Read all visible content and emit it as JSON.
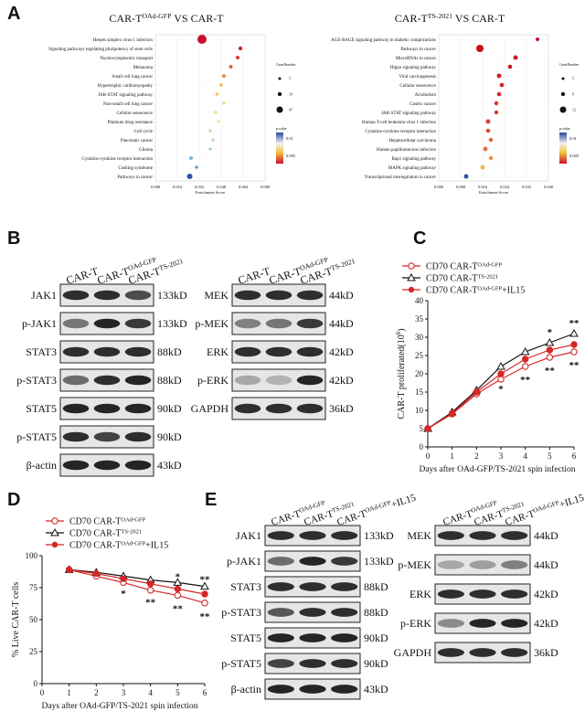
{
  "panels": {
    "A": "A",
    "B": "B",
    "C": "C",
    "D": "D",
    "E": "E"
  },
  "panel_a": {
    "left": {
      "title_main": "CAR-T",
      "title_sup": "OAd-GFP",
      "title_rest": " VS CAR-T",
      "xlabel": "Enrichment Score",
      "xticks": [
        "0.000",
        "0.016",
        "0.032",
        "0.048",
        "0.064",
        "0.080"
      ],
      "terms": [
        {
          "name": "Herpes simplex virus 1 infection",
          "x": 0.034,
          "color": "#c8102e",
          "size": 5
        },
        {
          "name": "Signaling pathways regulating pluripotency of stem cells",
          "x": 0.062,
          "color": "#d02a2a",
          "size": 2.2
        },
        {
          "name": "Nucleocytoplasmic transport",
          "x": 0.06,
          "color": "#d63a2a",
          "size": 2
        },
        {
          "name": "Melanoma",
          "x": 0.055,
          "color": "#e06030",
          "size": 2
        },
        {
          "name": "Small cell lung cancer",
          "x": 0.05,
          "color": "#e88a3c",
          "size": 2
        },
        {
          "name": "Hypertrophic cardiomyopathy",
          "x": 0.048,
          "color": "#eeb050",
          "size": 1.8
        },
        {
          "name": "JAK-STAT signaling pathway",
          "x": 0.045,
          "color": "#f2c860",
          "size": 1.8
        },
        {
          "name": "Non-small cell lung cancer",
          "x": 0.05,
          "color": "#f4d870",
          "size": 1.6
        },
        {
          "name": "Cellular senescence",
          "x": 0.044,
          "color": "#f0e080",
          "size": 1.8
        },
        {
          "name": "Platinum drug resistance",
          "x": 0.046,
          "color": "#e4e6a0",
          "size": 1.6
        },
        {
          "name": "Cell cycle",
          "x": 0.04,
          "color": "#c8e0b0",
          "size": 1.8
        },
        {
          "name": "Pancreatic cancer",
          "x": 0.042,
          "color": "#b0d8c0",
          "size": 1.6
        },
        {
          "name": "Glioma",
          "x": 0.04,
          "color": "#a0d0cc",
          "size": 1.6
        },
        {
          "name": "Cytokine-cytokine receptor interaction",
          "x": 0.026,
          "color": "#7ab0d8",
          "size": 2
        },
        {
          "name": "Cushing syndrome",
          "x": 0.03,
          "color": "#6aa0d0",
          "size": 1.8
        },
        {
          "name": "Pathways in cancer",
          "x": 0.025,
          "color": "#3050a0",
          "size": 3
        }
      ],
      "legend_title": "GeneNumber",
      "legend_sizes": [
        "5",
        "10",
        "47"
      ],
      "legend_p_title": "p.value",
      "legend_p_ticks": [
        "0.01",
        "0.005"
      ]
    },
    "right": {
      "title_main": "CAR-T",
      "title_sup": "TS-2021",
      "title_rest": " VS CAR-T",
      "xlabel": "Enrichment Score",
      "xticks": [
        "0.000",
        "0.008",
        "0.016",
        "0.024",
        "0.032",
        "0.040"
      ],
      "terms": [
        {
          "name": "AGE-RAGE signaling pathway in diabetic complications",
          "x": 0.036,
          "color": "#c8102e",
          "size": 2
        },
        {
          "name": "Pathways in cancer",
          "x": 0.015,
          "color": "#c81020",
          "size": 4
        },
        {
          "name": "MicroRNAs in cancer",
          "x": 0.028,
          "color": "#c81a28",
          "size": 2.5
        },
        {
          "name": "Hippo signaling pathway",
          "x": 0.026,
          "color": "#cc1a28",
          "size": 2.3
        },
        {
          "name": "Viral carcinogenesis",
          "x": 0.022,
          "color": "#d02028",
          "size": 2.5
        },
        {
          "name": "Cellular senescence",
          "x": 0.023,
          "color": "#d02028",
          "size": 2.3
        },
        {
          "name": "Alcoholism",
          "x": 0.022,
          "color": "#d42830",
          "size": 2.3
        },
        {
          "name": "Gastric cancer",
          "x": 0.021,
          "color": "#d83030",
          "size": 2.2
        },
        {
          "name": "JAK-STAT signaling pathway",
          "x": 0.021,
          "color": "#d83a30",
          "size": 2.2
        },
        {
          "name": "Human T-cell leukemia virus 1 infection",
          "x": 0.018,
          "color": "#dc4030",
          "size": 2.5
        },
        {
          "name": "Cytokine-cytokine receptor interaction",
          "x": 0.018,
          "color": "#e05030",
          "size": 2.3
        },
        {
          "name": "Hepatocellular carcinoma",
          "x": 0.019,
          "color": "#e46034",
          "size": 2.2
        },
        {
          "name": "Human papillomavirus infection",
          "x": 0.017,
          "color": "#e87038",
          "size": 2.5
        },
        {
          "name": "Rap1 signaling pathway",
          "x": 0.019,
          "color": "#ee8a40",
          "size": 2.2
        },
        {
          "name": "MAPK signaling pathway",
          "x": 0.016,
          "color": "#f2b050",
          "size": 2.4
        },
        {
          "name": "Transcriptional misregulation in cancer",
          "x": 0.01,
          "color": "#3050a0",
          "size": 2.5
        }
      ],
      "legend_title": "GeneNumber",
      "legend_sizes": [
        "5",
        "9",
        "12"
      ],
      "legend_p_title": "p.value",
      "legend_p_ticks": [
        "0.01",
        "0.005"
      ]
    }
  },
  "panel_b": {
    "lanes": [
      {
        "main": "CAR-T",
        "sup": ""
      },
      {
        "main": "CAR-T",
        "sup": "OAd-GFP"
      },
      {
        "main": "CAR-T",
        "sup": "TS-2021"
      }
    ],
    "left_rows": [
      {
        "label": "JAK1",
        "kd": "133kD"
      },
      {
        "label": "p-JAK1",
        "kd": "133kD"
      },
      {
        "label": "STAT3",
        "kd": "88kD"
      },
      {
        "label": "p-STAT3",
        "kd": "88kD"
      },
      {
        "label": "STAT5",
        "kd": "90kD"
      },
      {
        "label": "p-STAT5",
        "kd": "90kD"
      },
      {
        "label": "β-actin",
        "kd": "43kD"
      }
    ],
    "right_rows": [
      {
        "label": "MEK",
        "kd": "44kD"
      },
      {
        "label": "p-MEK",
        "kd": "44kD"
      },
      {
        "label": "ERK",
        "kd": "42kD"
      },
      {
        "label": "p-ERK",
        "kd": "42kD"
      },
      {
        "label": "GAPDH",
        "kd": "36kD"
      }
    ]
  },
  "panel_e": {
    "lanes": [
      {
        "main": "CAR-T",
        "sup": "OAd-GFP",
        "rest": ""
      },
      {
        "main": "CAR-T",
        "sup": "TS-2021",
        "rest": ""
      },
      {
        "main": "CAR-T",
        "sup": "OAd-GFP",
        "rest": "+IL15"
      }
    ],
    "left_rows": [
      {
        "label": "JAK1",
        "kd": "133kD"
      },
      {
        "label": "p-JAK1",
        "kd": "133kD"
      },
      {
        "label": "STAT3",
        "kd": "88kD"
      },
      {
        "label": "p-STAT3",
        "kd": "88kD"
      },
      {
        "label": "STAT5",
        "kd": "90kD"
      },
      {
        "label": "p-STAT5",
        "kd": "90kD"
      },
      {
        "label": "β-actin",
        "kd": "43kD"
      }
    ],
    "right_rows": [
      {
        "label": "MEK",
        "kd": "44kD"
      },
      {
        "label": "p-MEK",
        "kd": "44kD"
      },
      {
        "label": "ERK",
        "kd": "42kD"
      },
      {
        "label": "p-ERK",
        "kd": "42kD"
      },
      {
        "label": "GAPDH",
        "kd": "36kD"
      }
    ]
  },
  "chart_data": [
    {
      "type": "line",
      "panel": "C",
      "xlabel": "Days after OAd-GFP/TS-2021 spin infection",
      "ylabel": "CAR-T proliferated(10",
      "ylabel_sup": "6",
      "ylabel_end": ")",
      "xlim": [
        0,
        6
      ],
      "ylim": [
        0,
        40
      ],
      "xticks": [
        "0",
        "1",
        "2",
        "3",
        "4",
        "5",
        "6"
      ],
      "yticks": [
        "0",
        "5",
        "10",
        "15",
        "20",
        "25",
        "30",
        "35",
        "40"
      ],
      "x": [
        0,
        1,
        2,
        3,
        4,
        5,
        6
      ],
      "series": [
        {
          "name_main": "CD70 CAR-T",
          "name_sup": "OAd-GFP",
          "name_rest": "",
          "values": [
            5,
            9,
            14.5,
            18.5,
            22,
            24.5,
            26
          ],
          "color": "#d62728",
          "marker": "open-circle"
        },
        {
          "name_main": "CD70 CAR-T",
          "name_sup": "TS-2021",
          "name_rest": "",
          "values": [
            5,
            9.5,
            15.5,
            22,
            26,
            28.5,
            31
          ],
          "color": "#111111",
          "marker": "open-triangle"
        },
        {
          "name_main": "CD70 CAR-T",
          "name_sup": "OAd-GFP",
          "name_rest": "+IL15",
          "values": [
            5,
            9.2,
            15,
            20,
            24,
            26.5,
            28
          ],
          "color": "#d62728",
          "marker": "filled-circle"
        }
      ],
      "annotations": [
        {
          "x": 3,
          "y": 15,
          "text": "*",
          "color": "#111"
        },
        {
          "x": 4,
          "y": 17.5,
          "text": "**",
          "color": "#111"
        },
        {
          "x": 5,
          "y": 30.5,
          "text": "*",
          "color": "#111"
        },
        {
          "x": 5,
          "y": 20,
          "text": "**",
          "color": "#111"
        },
        {
          "x": 6,
          "y": 33,
          "text": "**",
          "color": "#111"
        },
        {
          "x": 6,
          "y": 21.5,
          "text": "**",
          "color": "#111"
        }
      ]
    },
    {
      "type": "line",
      "panel": "D",
      "xlabel": "Days after OAd-GFP/TS-2021 spin infection",
      "ylabel": "% Live CAR-T cells",
      "xlim": [
        0,
        6
      ],
      "ylim": [
        0,
        100
      ],
      "xticks": [
        "0",
        "1",
        "2",
        "3",
        "4",
        "5",
        "6"
      ],
      "yticks": [
        "0",
        "25",
        "50",
        "75",
        "100"
      ],
      "x": [
        1,
        2,
        3,
        4,
        5,
        6
      ],
      "series": [
        {
          "name_main": "CD70 CAR-T",
          "name_sup": "OAd-GFP",
          "name_rest": "",
          "values": [
            89,
            84,
            79,
            73,
            69,
            63
          ],
          "color": "#d62728",
          "marker": "open-circle"
        },
        {
          "name_main": "CD70 CAR-T",
          "name_sup": "TS-2021",
          "name_rest": "",
          "values": [
            89,
            87,
            84,
            81,
            79,
            76
          ],
          "color": "#111111",
          "marker": "open-triangle"
        },
        {
          "name_main": "CD70 CAR-T",
          "name_sup": "OAd-GFP",
          "name_rest": "+IL15",
          "values": [
            89,
            86,
            82,
            78,
            74,
            70
          ],
          "color": "#d62728",
          "marker": "filled-circle"
        }
      ],
      "annotations": [
        {
          "x": 3,
          "y": 68,
          "text": "*",
          "color": "#111"
        },
        {
          "x": 4,
          "y": 61,
          "text": "**",
          "color": "#111"
        },
        {
          "x": 5,
          "y": 81,
          "text": "*",
          "color": "#111"
        },
        {
          "x": 5,
          "y": 56,
          "text": "**",
          "color": "#111"
        },
        {
          "x": 6,
          "y": 79,
          "text": "**",
          "color": "#111"
        },
        {
          "x": 6,
          "y": 50,
          "text": "**",
          "color": "#111"
        }
      ]
    }
  ]
}
